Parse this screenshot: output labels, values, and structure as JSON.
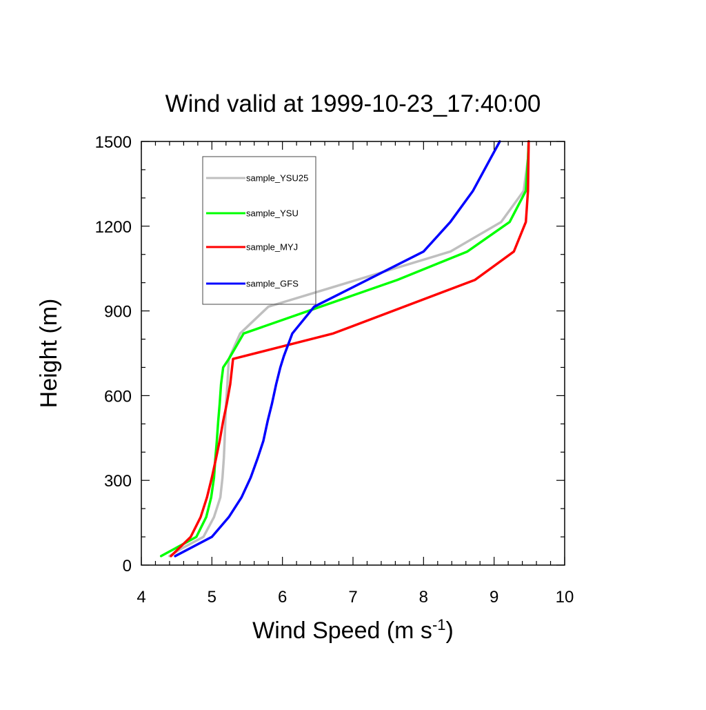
{
  "chart_data": {
    "type": "line",
    "title": "Wind valid at 1999-10-23_17:40:00",
    "xlabel": "Wind Speed (m s",
    "xlabel_sup": "-1",
    "xlabel_end": ")",
    "ylabel": "Height (m)",
    "xlim": [
      4,
      10
    ],
    "ylim": [
      0,
      1500
    ],
    "xticks": [
      4,
      5,
      6,
      7,
      8,
      9,
      10
    ],
    "yticks": [
      0,
      300,
      600,
      900,
      1200,
      1500
    ],
    "grid": false,
    "legend_position": "top-left",
    "series": [
      {
        "name": "sample_YSU25",
        "color": "#bfbfbf",
        "x": [
          4.4,
          4.58,
          4.88,
          5.03,
          5.12,
          5.15,
          5.17,
          5.18,
          5.19,
          5.2,
          5.22,
          5.24,
          5.4,
          5.8,
          8.38,
          9.1,
          9.42,
          9.48,
          9.49
        ],
        "y": [
          32,
          60,
          100,
          170,
          240,
          310,
          380,
          440,
          510,
          570,
          640,
          730,
          820,
          915,
          1110,
          1215,
          1325,
          1440,
          1500
        ]
      },
      {
        "name": "sample_YSU",
        "color": "#00ff00",
        "x": [
          4.28,
          4.78,
          4.92,
          4.99,
          5.03,
          5.05,
          5.07,
          5.09,
          5.11,
          5.13,
          5.16,
          5.24,
          5.45,
          7.63,
          8.62,
          9.22,
          9.45,
          9.48,
          9.49
        ],
        "y": [
          32,
          100,
          170,
          240,
          310,
          380,
          440,
          510,
          570,
          640,
          700,
          730,
          820,
          1010,
          1110,
          1215,
          1325,
          1440,
          1500
        ]
      },
      {
        "name": "sample_MYJ",
        "color": "#ff0000",
        "x": [
          4.42,
          4.7,
          4.84,
          4.93,
          5.0,
          5.06,
          5.11,
          5.16,
          5.21,
          5.26,
          5.3,
          6.72,
          8.73,
          9.28,
          9.45,
          9.48,
          9.49
        ],
        "y": [
          32,
          100,
          170,
          240,
          310,
          380,
          440,
          510,
          570,
          640,
          730,
          820,
          1010,
          1110,
          1215,
          1325,
          1500
        ]
      },
      {
        "name": "sample_GFS",
        "color": "#0000ff",
        "x": [
          4.48,
          5.0,
          5.24,
          5.42,
          5.55,
          5.65,
          5.73,
          5.79,
          5.85,
          5.91,
          5.97,
          6.02,
          6.14,
          6.45,
          8.0,
          8.38,
          8.7,
          8.95,
          9.08
        ],
        "y": [
          32,
          100,
          170,
          240,
          310,
          380,
          440,
          510,
          570,
          640,
          700,
          740,
          820,
          915,
          1110,
          1215,
          1325,
          1440,
          1500
        ]
      }
    ]
  }
}
